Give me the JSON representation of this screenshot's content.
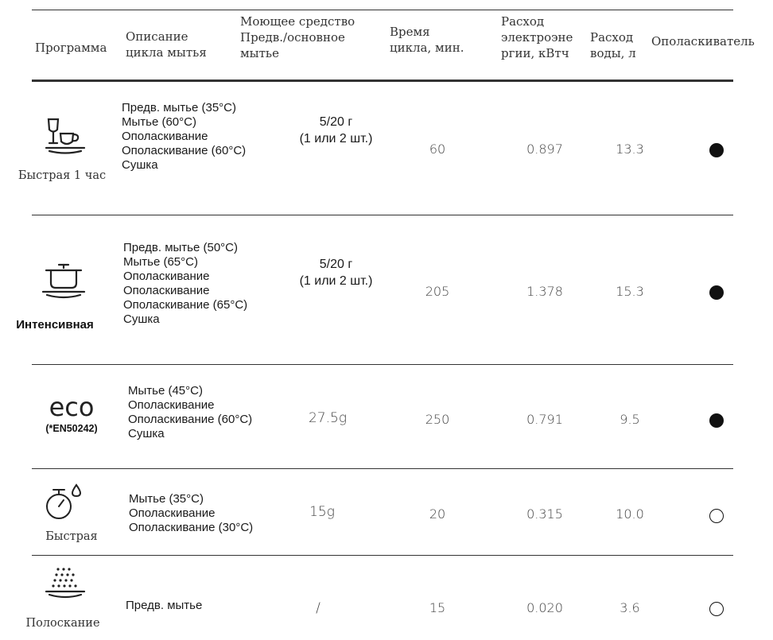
{
  "header": {
    "program": "Программа",
    "desc_1": "Описание",
    "desc_2": "цикла мытья",
    "det_1": "Моющее средство",
    "det_2": "Предв./основное",
    "det_3": "мытье",
    "time_1": "Время",
    "time_2": "цикла, мин.",
    "energy_1": "Расход",
    "energy_2": "электроэне",
    "energy_3": "ргии, кВтч",
    "water_1": "Расход",
    "water_2": "воды, л",
    "rinse": "Ополаскиватель"
  },
  "icons": {
    "r1": "glass-cup-plate-icon",
    "r2": "pot-plate-icon",
    "r3": "eco-text-icon",
    "r4": "timer-drop-icon",
    "r5": "spray-dots-plate-icon"
  },
  "rows": [
    {
      "name": "Быстрая 1 час",
      "steps": [
        "Предв. мытье (35°C)",
        "Мытье (60°C)",
        "Ополаскивание",
        "Ополаскивание (60°C)",
        "Сушка"
      ],
      "det_1": "5/20 г",
      "det_2": "(1 или 2 шт.)",
      "time": "60",
      "energy": "0.897",
      "water": "13.3",
      "rinse": "filled"
    },
    {
      "name": "Интенсивная",
      "steps": [
        "Предв. мытье (50°C)",
        "Мытье (65°C)",
        "Ополаскивание",
        "Ополаскивание",
        "Ополаскивание (65°C)",
        "Сушка"
      ],
      "det_1": "5/20 г",
      "det_2": "(1 или 2 шт.)",
      "time": "205",
      "energy": "1.378",
      "water": "15.3",
      "rinse": "filled"
    },
    {
      "eco": "eco",
      "name": "(*EN50242)",
      "steps": [
        "Мытье (45°C)",
        "Ополаскивание",
        "Ополаскивание (60°C)",
        "Сушка"
      ],
      "det": "27.5g",
      "time": "250",
      "energy": "0.791",
      "water": "9.5",
      "rinse": "filled"
    },
    {
      "name": "Быстрая",
      "steps": [
        "Мытье (35°C)",
        "Ополаскивание",
        "Ополаскивание (30°C)"
      ],
      "det": "15g",
      "time": "20",
      "energy": "0.315",
      "water": "10.0",
      "rinse": "empty"
    },
    {
      "name": "Полоскание",
      "steps": [
        "Предв. мытье"
      ],
      "det": "/",
      "time": "15",
      "energy": "0.020",
      "water": "3.6",
      "rinse": "empty"
    }
  ]
}
